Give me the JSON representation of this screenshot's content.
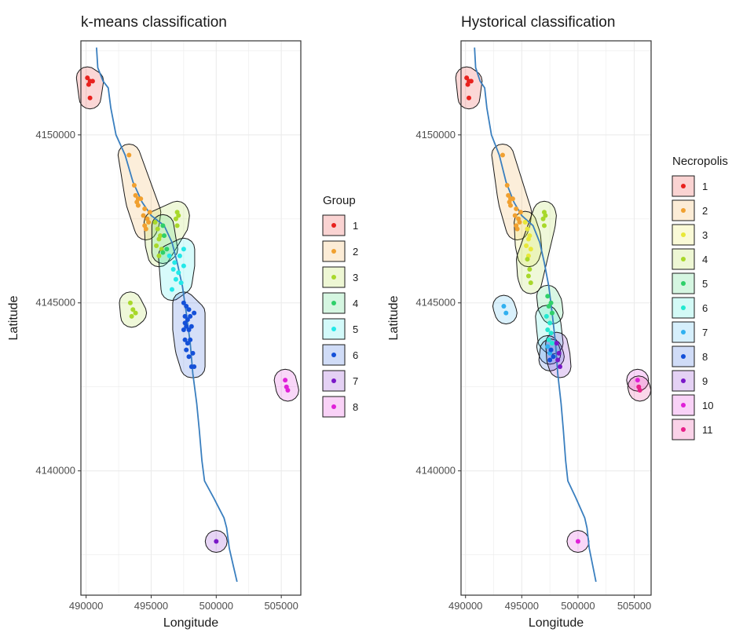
{
  "chart_data": [
    {
      "type": "scatter",
      "title": "k-means classification",
      "xlabel": "Longitude",
      "ylabel": "Latitude",
      "xlim": [
        489600,
        506500
      ],
      "ylim": [
        4136300,
        4152800
      ],
      "xticks": [
        490000,
        495000,
        500000,
        505000
      ],
      "xtick_labels": [
        "490000",
        "495000",
        "500000",
        "505000"
      ],
      "yticks": [
        4140000,
        4145000,
        4150000
      ],
      "ytick_labels": [
        "4140000",
        "4145000",
        "4150000"
      ],
      "grid": true,
      "legend_title": "Group",
      "legend_position": "right",
      "river": [
        [
          490800,
          4152600
        ],
        [
          490900,
          4152000
        ],
        [
          491300,
          4151600
        ],
        [
          491700,
          4151400
        ],
        [
          491900,
          4150800
        ],
        [
          492300,
          4150000
        ],
        [
          493000,
          4149400
        ],
        [
          493600,
          4148600
        ],
        [
          494300,
          4148000
        ],
        [
          495000,
          4147600
        ],
        [
          496000,
          4147300
        ],
        [
          496600,
          4146800
        ],
        [
          497000,
          4146200
        ],
        [
          497400,
          4145500
        ],
        [
          497700,
          4144700
        ],
        [
          498000,
          4143800
        ],
        [
          498200,
          4142900
        ],
        [
          498500,
          4142000
        ],
        [
          498700,
          4141200
        ],
        [
          498900,
          4140300
        ],
        [
          499100,
          4139700
        ],
        [
          499800,
          4139200
        ],
        [
          500200,
          4138900
        ],
        [
          500600,
          4138600
        ],
        [
          500800,
          4138300
        ],
        [
          501000,
          4137700
        ],
        [
          501300,
          4137200
        ],
        [
          501600,
          4136700
        ]
      ],
      "series": [
        {
          "name": "1",
          "color": "#e8221e",
          "points": [
            [
              490100,
              4151700
            ],
            [
              490300,
              4151600
            ],
            [
              490200,
              4151500
            ],
            [
              490500,
              4151600
            ],
            [
              490300,
              4151100
            ]
          ]
        },
        {
          "name": "2",
          "color": "#f0a030",
          "points": [
            [
              493300,
              4149400
            ],
            [
              493700,
              4148500
            ],
            [
              493800,
              4148200
            ],
            [
              494000,
              4148100
            ],
            [
              493900,
              4148000
            ],
            [
              494200,
              4148100
            ],
            [
              494000,
              4147900
            ],
            [
              494500,
              4147800
            ],
            [
              494400,
              4147600
            ],
            [
              494700,
              4147500
            ],
            [
              494500,
              4147300
            ],
            [
              494800,
              4147400
            ],
            [
              494600,
              4147200
            ],
            [
              494900,
              4147700
            ]
          ]
        },
        {
          "name": "3",
          "color": "#a8d82a",
          "points": [
            [
              495300,
              4147400
            ],
            [
              495500,
              4147200
            ],
            [
              495600,
              4146900
            ],
            [
              495700,
              4147000
            ],
            [
              495400,
              4146700
            ],
            [
              495800,
              4146600
            ],
            [
              495600,
              4146400
            ],
            [
              497000,
              4147700
            ],
            [
              497100,
              4147600
            ],
            [
              496900,
              4147500
            ],
            [
              497000,
              4147300
            ],
            [
              493400,
              4145000
            ],
            [
              493600,
              4144800
            ],
            [
              493500,
              4144600
            ],
            [
              493800,
              4144700
            ]
          ]
        },
        {
          "name": "4",
          "color": "#2fd06a",
          "points": [
            [
              495900,
              4147300
            ],
            [
              496000,
              4147000
            ],
            [
              496200,
              4146600
            ],
            [
              495900,
              4146500
            ]
          ]
        },
        {
          "name": "5",
          "color": "#22e8e8",
          "points": [
            [
              496400,
              4146400
            ],
            [
              496800,
              4146200
            ],
            [
              497200,
              4146400
            ],
            [
              497500,
              4146600
            ],
            [
              496700,
              4146000
            ],
            [
              497100,
              4145900
            ],
            [
              496900,
              4145700
            ],
            [
              497300,
              4145600
            ],
            [
              496600,
              4145400
            ],
            [
              497500,
              4146100
            ]
          ]
        },
        {
          "name": "6",
          "color": "#1450d8",
          "points": [
            [
              497500,
              4145000
            ],
            [
              497700,
              4144900
            ],
            [
              497900,
              4144800
            ],
            [
              497600,
              4144600
            ],
            [
              497800,
              4144500
            ],
            [
              498000,
              4144600
            ],
            [
              497700,
              4144300
            ],
            [
              497500,
              4144200
            ],
            [
              497900,
              4144200
            ],
            [
              498100,
              4144300
            ],
            [
              497600,
              4143900
            ],
            [
              497800,
              4143800
            ],
            [
              498000,
              4143900
            ],
            [
              497700,
              4143600
            ],
            [
              498200,
              4143500
            ],
            [
              497900,
              4143400
            ],
            [
              498100,
              4143100
            ],
            [
              498300,
              4143100
            ],
            [
              497600,
              4144400
            ],
            [
              498300,
              4144700
            ]
          ]
        },
        {
          "name": "7",
          "color": "#7a18c8",
          "points": [
            [
              500000,
              4137900
            ]
          ]
        },
        {
          "name": "8",
          "color": "#e020d8",
          "points": [
            [
              505300,
              4142700
            ],
            [
              505400,
              4142500
            ],
            [
              505500,
              4142400
            ]
          ]
        }
      ]
    },
    {
      "type": "scatter",
      "title": "Hystorical classification",
      "xlabel": "Longitude",
      "ylabel": "Latitude",
      "xlim": [
        489600,
        506500
      ],
      "ylim": [
        4136300,
        4152800
      ],
      "xticks": [
        490000,
        495000,
        500000,
        505000
      ],
      "xtick_labels": [
        "490000",
        "495000",
        "500000",
        "505000"
      ],
      "yticks": [
        4140000,
        4145000,
        4150000
      ],
      "ytick_labels": [
        "4140000",
        "4145000",
        "4150000"
      ],
      "grid": true,
      "legend_title": "Necropolis",
      "legend_position": "right",
      "river": [
        [
          490800,
          4152600
        ],
        [
          490900,
          4152000
        ],
        [
          491300,
          4151600
        ],
        [
          491700,
          4151400
        ],
        [
          491900,
          4150800
        ],
        [
          492300,
          4150000
        ],
        [
          493000,
          4149400
        ],
        [
          493600,
          4148600
        ],
        [
          494300,
          4148000
        ],
        [
          495000,
          4147600
        ],
        [
          496000,
          4147300
        ],
        [
          496600,
          4146800
        ],
        [
          497000,
          4146200
        ],
        [
          497400,
          4145500
        ],
        [
          497700,
          4144700
        ],
        [
          498000,
          4143800
        ],
        [
          498200,
          4142900
        ],
        [
          498500,
          4142000
        ],
        [
          498700,
          4141200
        ],
        [
          498900,
          4140300
        ],
        [
          499100,
          4139700
        ],
        [
          499800,
          4139200
        ],
        [
          500200,
          4138900
        ],
        [
          500600,
          4138600
        ],
        [
          500800,
          4138300
        ],
        [
          501000,
          4137700
        ],
        [
          501300,
          4137200
        ],
        [
          501600,
          4136700
        ]
      ],
      "series": [
        {
          "name": "1",
          "color": "#e8221e",
          "points": [
            [
              490100,
              4151700
            ],
            [
              490300,
              4151600
            ],
            [
              490200,
              4151500
            ],
            [
              490500,
              4151600
            ],
            [
              490300,
              4151100
            ]
          ]
        },
        {
          "name": "2",
          "color": "#f0a030",
          "points": [
            [
              493300,
              4149400
            ],
            [
              493700,
              4148500
            ],
            [
              493800,
              4148200
            ],
            [
              494000,
              4148100
            ],
            [
              493900,
              4148000
            ],
            [
              494200,
              4148100
            ],
            [
              494000,
              4147900
            ],
            [
              494500,
              4147800
            ],
            [
              494400,
              4147600
            ],
            [
              494700,
              4147500
            ],
            [
              494500,
              4147300
            ],
            [
              494800,
              4147400
            ],
            [
              494600,
              4147200
            ],
            [
              494900,
              4147700
            ]
          ]
        },
        {
          "name": "3",
          "color": "#e8e838",
          "points": [
            [
              495300,
              4147400
            ],
            [
              495500,
              4147200
            ],
            [
              495600,
              4146900
            ],
            [
              495700,
              4147000
            ],
            [
              495400,
              4146700
            ],
            [
              495800,
              4146600
            ],
            [
              495600,
              4146400
            ]
          ]
        },
        {
          "name": "4",
          "color": "#a8d82a",
          "points": [
            [
              497000,
              4147700
            ],
            [
              497100,
              4147600
            ],
            [
              496900,
              4147500
            ],
            [
              497000,
              4147300
            ],
            [
              495500,
              4146300
            ],
            [
              495700,
              4146000
            ],
            [
              495600,
              4145800
            ],
            [
              495800,
              4145600
            ]
          ]
        },
        {
          "name": "5",
          "color": "#2fd06a",
          "points": [
            [
              497300,
              4145200
            ],
            [
              497600,
              4145000
            ],
            [
              497400,
              4144900
            ],
            [
              497700,
              4144700
            ]
          ]
        },
        {
          "name": "6",
          "color": "#22e8d0",
          "points": [
            [
              497200,
              4144600
            ],
            [
              497500,
              4144400
            ],
            [
              497300,
              4144200
            ],
            [
              497600,
              4144100
            ],
            [
              497400,
              4143900
            ],
            [
              497700,
              4143800
            ]
          ]
        },
        {
          "name": "7",
          "color": "#30b0f0",
          "points": [
            [
              493400,
              4144900
            ],
            [
              493600,
              4144700
            ],
            [
              497300,
              4143700
            ],
            [
              497500,
              4143500
            ]
          ]
        },
        {
          "name": "8",
          "color": "#1450d8",
          "points": [
            [
              497600,
              4143600
            ],
            [
              497800,
              4143400
            ],
            [
              497500,
              4143300
            ]
          ]
        },
        {
          "name": "9",
          "color": "#7a18c8",
          "points": [
            [
              498100,
              4143800
            ],
            [
              498300,
              4143500
            ],
            [
              498200,
              4143300
            ],
            [
              498400,
              4143100
            ]
          ]
        },
        {
          "name": "10",
          "color": "#e020d8",
          "points": [
            [
              500000,
              4137900
            ],
            [
              505300,
              4142700
            ]
          ]
        },
        {
          "name": "11",
          "color": "#e8208a",
          "points": [
            [
              505400,
              4142500
            ],
            [
              505500,
              4142400
            ]
          ]
        }
      ]
    }
  ]
}
